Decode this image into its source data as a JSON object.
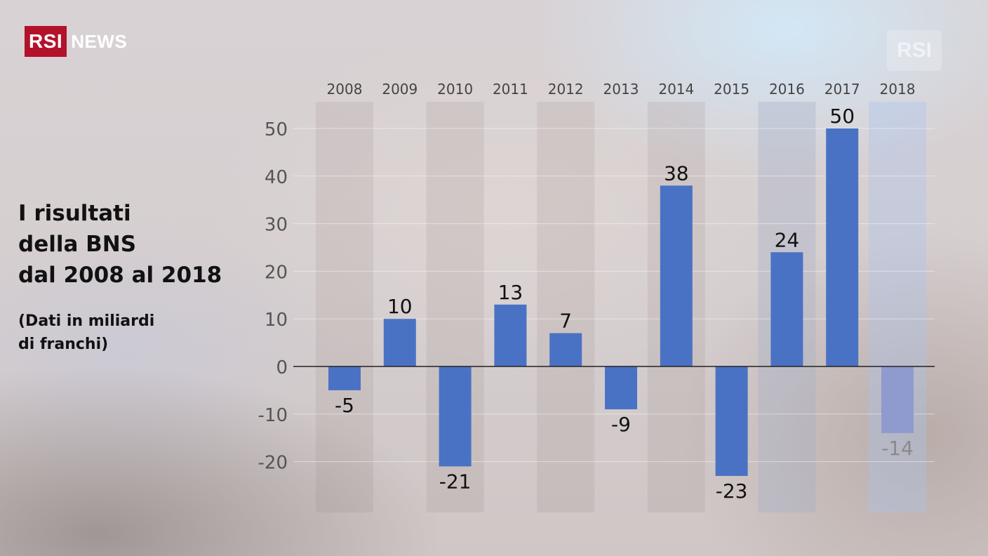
{
  "logo": {
    "brand": "RSI",
    "section": "NEWS"
  },
  "watermark": {
    "text": "RSI"
  },
  "title": {
    "lines": [
      "I risultati",
      "della BNS",
      "dal 2008 al 2018"
    ]
  },
  "subtitle": {
    "lines": [
      "(Dati in miliardi",
      "di franchi)"
    ]
  },
  "colors": {
    "bar": "#4a72c4",
    "bar_provisional": "#8f9bcf",
    "label": "#111111",
    "label_provisional": "#8a8a8a",
    "axis_tick": "#555555",
    "year_label": "#444444"
  },
  "chart_data": {
    "type": "bar",
    "categories": [
      "2008",
      "2009",
      "2010",
      "2011",
      "2012",
      "2013",
      "2014",
      "2015",
      "2016",
      "2017",
      "2018"
    ],
    "values": [
      -5,
      10,
      -21,
      13,
      7,
      -9,
      38,
      -23,
      24,
      50,
      -14
    ],
    "data_labels": [
      "-5",
      "10",
      "-21",
      "13",
      "7",
      "-9",
      "38",
      "-23",
      "24",
      "50",
      "-14"
    ],
    "provisional_index": 10,
    "ylim": [
      -30,
      55
    ],
    "yticks": [
      50,
      40,
      30,
      20,
      10,
      0,
      -10,
      -20
    ],
    "ytick_labels": [
      "50",
      "40",
      "30",
      "20",
      "10",
      "0",
      "-10",
      "-20"
    ],
    "grid": true,
    "title": "I risultati della BNS dal 2008 al 2018",
    "subtitle": "(Dati in miliardi di franchi)",
    "xlabel": "",
    "ylabel": ""
  }
}
